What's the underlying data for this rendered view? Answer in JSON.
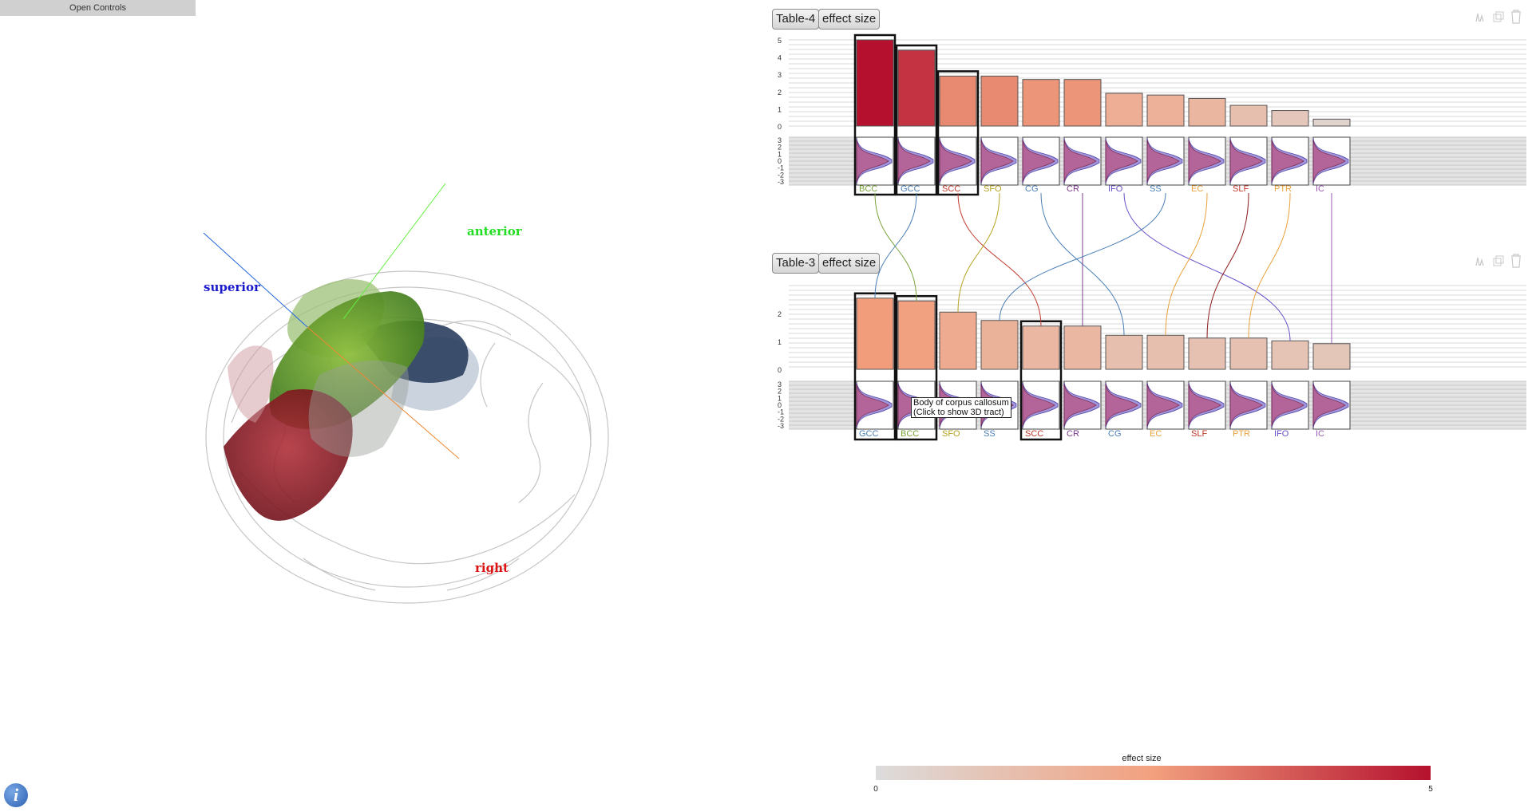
{
  "controls": {
    "open_label": "Open Controls"
  },
  "viewer": {
    "axes": {
      "anterior": "anterior",
      "superior": "superior",
      "right": "right"
    },
    "colors": {
      "anterior": "#22dd22",
      "superior": "#1a1acc",
      "right": "#dd1111"
    }
  },
  "tooltip": {
    "line1": "Body of corpus callosum",
    "line2": "(Click to show 3D tract)"
  },
  "legend": {
    "title": "effect size",
    "min_label": "0",
    "max_label": "5",
    "color_low": "#dcdcdc",
    "color_mid": "#f2a07e",
    "color_high": "#b5112e"
  },
  "chart_data": [
    {
      "type": "bar",
      "table_label": "Table-4",
      "metric_label": "effect size",
      "categories": [
        "BCC",
        "GCC",
        "SCC",
        "SFO",
        "CG",
        "CR",
        "IFO",
        "SS",
        "EC",
        "SLF",
        "PTR",
        "IC"
      ],
      "category_colors": [
        "#7aa23a",
        "#4a7fb5",
        "#c0392b",
        "#b5a321",
        "#4a7fb5",
        "#7b3a8b",
        "#6a4fc9",
        "#4a7fb5",
        "#e8a13a",
        "#c0392b",
        "#e8a13a",
        "#9b59b6"
      ],
      "values": [
        5.0,
        4.4,
        2.9,
        2.9,
        2.7,
        2.7,
        1.9,
        1.8,
        1.6,
        1.2,
        0.9,
        0.4
      ],
      "highlighted": [
        0,
        1,
        2
      ],
      "y_ticks": [
        "5",
        "4",
        "3",
        "2",
        "1",
        "0"
      ],
      "ylim": [
        0,
        5
      ],
      "dist_ticks": [
        "3",
        "2",
        "1",
        "0",
        "-1",
        "-2",
        "-3"
      ]
    },
    {
      "type": "bar",
      "table_label": "Table-3",
      "metric_label": "effect size",
      "categories": [
        "GCC",
        "BCC",
        "SFO",
        "SS",
        "SCC",
        "CR",
        "CG",
        "EC",
        "SLF",
        "PTR",
        "IFO",
        "IC"
      ],
      "category_colors": [
        "#4a7fb5",
        "#7aa23a",
        "#b5a321",
        "#4a7fb5",
        "#c0392b",
        "#7b3a8b",
        "#4a7fb5",
        "#e8a13a",
        "#c0392b",
        "#e8a13a",
        "#6a4fc9",
        "#9b59b6"
      ],
      "values": [
        2.55,
        2.45,
        2.05,
        1.75,
        1.55,
        1.55,
        1.22,
        1.22,
        1.12,
        1.12,
        1.02,
        0.92
      ],
      "highlighted": [
        0,
        1,
        4
      ],
      "y_ticks": [
        "2",
        "1",
        "0"
      ],
      "ylim": [
        0,
        3
      ],
      "dist_ticks": [
        "3",
        "2",
        "1",
        "0",
        "-1",
        "-2",
        "-3"
      ]
    }
  ],
  "links": [
    {
      "from": "BCC",
      "to": "BCC",
      "color": "#7aa23a"
    },
    {
      "from": "GCC",
      "to": "GCC",
      "color": "#4a7fb5"
    },
    {
      "from": "SCC",
      "to": "SCC",
      "color": "#c0392b"
    },
    {
      "from": "SFO",
      "to": "SFO",
      "color": "#b5a321"
    },
    {
      "from": "CG",
      "to": "CG",
      "color": "#4a7fb5"
    },
    {
      "from": "CR",
      "to": "CR",
      "color": "#7b3a8b"
    },
    {
      "from": "IFO",
      "to": "IFO",
      "color": "#6a4fc9"
    },
    {
      "from": "SS",
      "to": "SS",
      "color": "#4a7fb5"
    },
    {
      "from": "EC",
      "to": "EC",
      "color": "#e8a13a"
    },
    {
      "from": "SLF",
      "to": "SLF",
      "color": "#8b1a1a"
    },
    {
      "from": "PTR",
      "to": "PTR",
      "color": "#e8a13a"
    },
    {
      "from": "IC",
      "to": "IC",
      "color": "#9b59b6"
    }
  ]
}
